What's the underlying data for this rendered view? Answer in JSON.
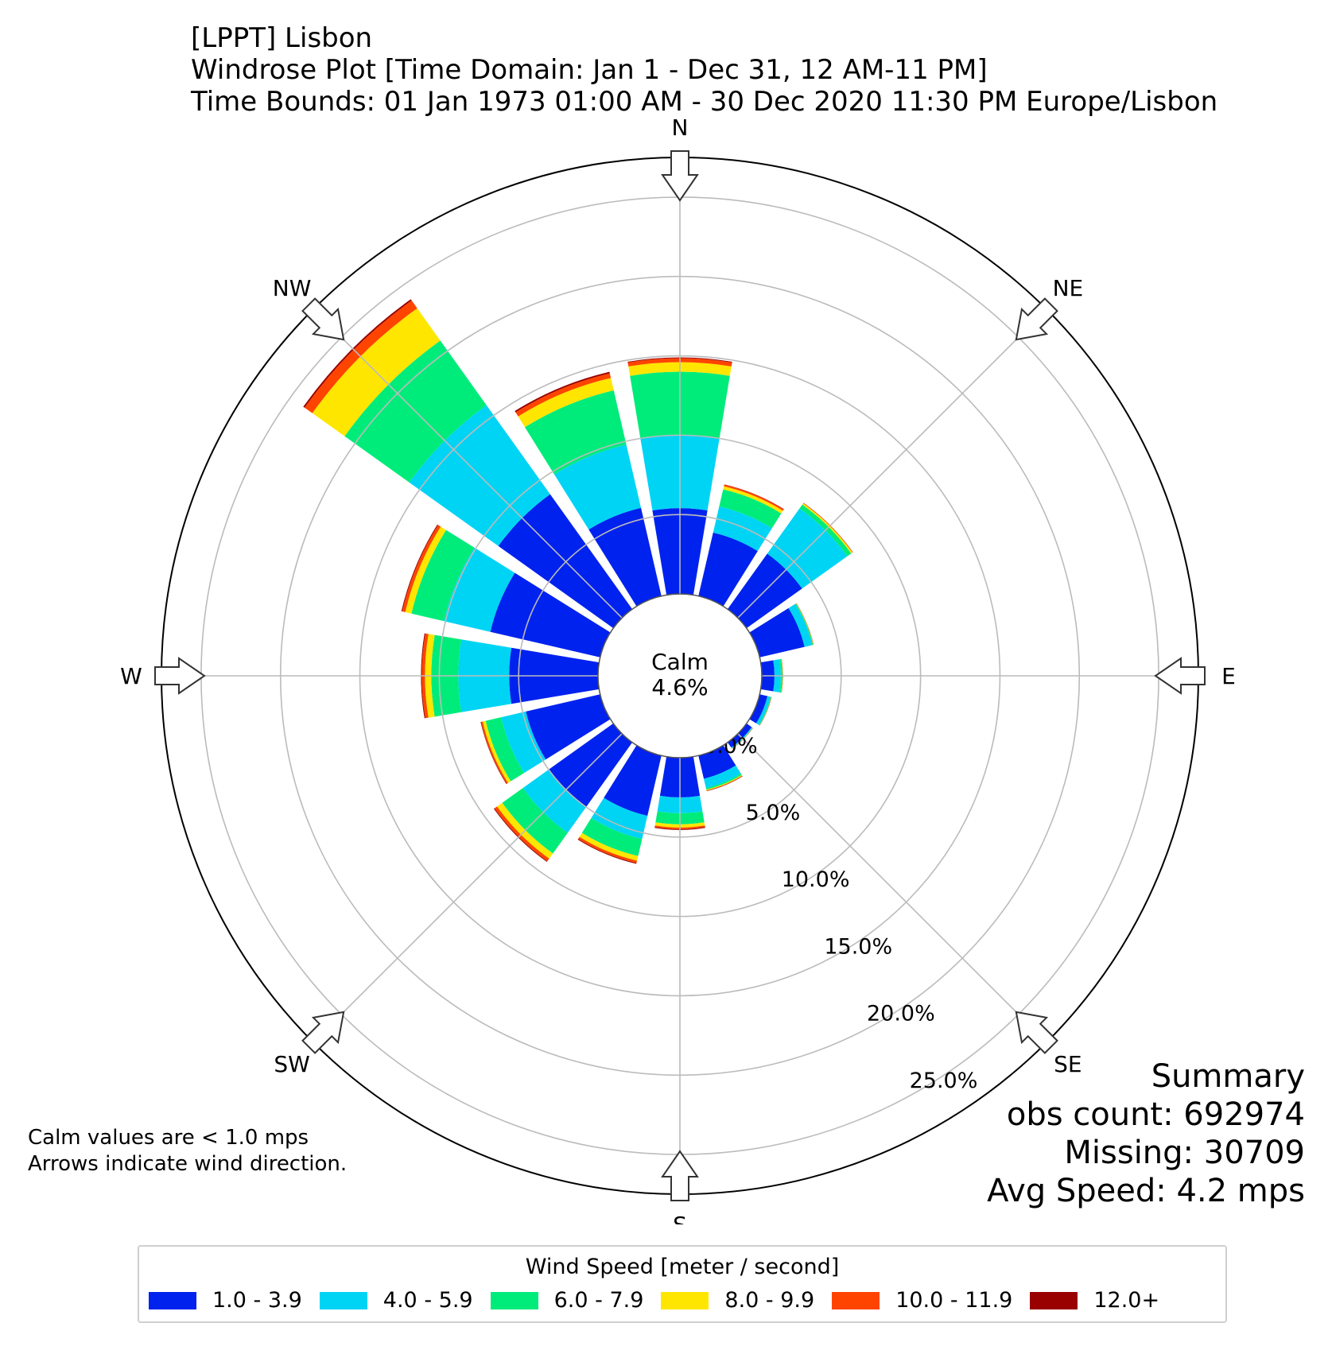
{
  "title": {
    "line1": "[LPPT] Lisbon",
    "line2": "Windrose Plot [Time Domain: Jan 1 - Dec 31, 12 AM-11 PM]",
    "line3": "Time Bounds: 01 Jan 1973 01:00 AM - 30 Dec 2020 11:30 PM Europe/Lisbon"
  },
  "calm": {
    "label": "Calm",
    "value": "4.6%"
  },
  "notes": {
    "line1": "Calm values are < 1.0 mps",
    "line2": "Arrows indicate wind direction."
  },
  "summary": {
    "title": "Summary",
    "obs": "obs count: 692974",
    "missing": "Missing: 30709",
    "avg": "Avg Speed: 4.2 mps"
  },
  "legend": {
    "title": "Wind Speed [meter / second]",
    "items": [
      {
        "label": "1.0 - 3.9",
        "color": "#0022ee"
      },
      {
        "label": "4.0 - 5.9",
        "color": "#00d4f4"
      },
      {
        "label": "6.0 - 7.9",
        "color": "#00ec7a"
      },
      {
        "label": "8.0 - 9.9",
        "color": "#ffe600"
      },
      {
        "label": "10.0 - 11.9",
        "color": "#ff4400"
      },
      {
        "label": "12.0+",
        "color": "#990000"
      }
    ]
  },
  "chart_data": {
    "type": "windrose",
    "radial_max": 27.5,
    "radial_ticks": [
      0,
      5,
      10,
      15,
      20,
      25
    ],
    "radial_tick_labels": [
      "0.0%",
      "5.0%",
      "10.0%",
      "15.0%",
      "20.0%",
      "25.0%"
    ],
    "compass_labels": [
      {
        "label": "N",
        "angle": 0
      },
      {
        "label": "NE",
        "angle": 45
      },
      {
        "label": "E",
        "angle": 90
      },
      {
        "label": "SE",
        "angle": 135
      },
      {
        "label": "S",
        "angle": 180
      },
      {
        "label": "SW",
        "angle": 225
      },
      {
        "label": "W",
        "angle": 270
      },
      {
        "label": "NW",
        "angle": 315
      }
    ],
    "series_names": [
      "1.0 - 3.9",
      "4.0 - 5.9",
      "6.0 - 7.9",
      "8.0 - 9.9",
      "10.0 - 11.9",
      "12.0+"
    ],
    "colors": [
      "#0022ee",
      "#00d4f4",
      "#00ec7a",
      "#ffe600",
      "#ff4400",
      "#990000"
    ],
    "directions": [
      0,
      22.5,
      45,
      67.5,
      90,
      112.5,
      135,
      157.5,
      180,
      202.5,
      225,
      247.5,
      270,
      292.5,
      315,
      337.5
    ],
    "cumulative": [
      [
        5.4,
        10.0,
        14.0,
        14.6,
        14.85,
        14.9
      ],
      [
        4.1,
        5.8,
        6.9,
        7.1,
        7.2,
        7.22
      ],
      [
        4.3,
        7.8,
        8.1,
        8.2,
        8.23,
        8.24
      ],
      [
        2.9,
        3.4,
        3.45,
        3.47,
        3.48,
        3.49
      ],
      [
        0.8,
        1.2,
        1.3,
        1.32,
        1.33,
        1.34
      ],
      [
        0.5,
        0.7,
        0.74,
        0.75,
        0.76,
        0.77
      ],
      [
        0.4,
        0.45,
        0.47,
        0.48,
        0.49,
        0.5
      ],
      [
        1.5,
        2.1,
        2.2,
        2.25,
        2.28,
        2.3
      ],
      [
        2.5,
        3.5,
        4.2,
        4.4,
        4.5,
        4.55
      ],
      [
        3.9,
        5.4,
        6.5,
        6.8,
        6.95,
        7.0
      ],
      [
        5.0,
        7.0,
        8.6,
        9.0,
        9.2,
        9.25
      ],
      [
        4.8,
        6.4,
        7.4,
        7.6,
        7.7,
        7.73
      ],
      [
        5.6,
        8.8,
        10.5,
        10.9,
        11.1,
        11.15
      ],
      [
        7.1,
        10.1,
        12.2,
        12.6,
        12.8,
        12.85
      ],
      [
        8.9,
        15.8,
        20.8,
        23.3,
        23.9,
        24.0
      ],
      [
        5.7,
        9.8,
        13.3,
        14.1,
        14.4,
        14.5
      ]
    ]
  }
}
